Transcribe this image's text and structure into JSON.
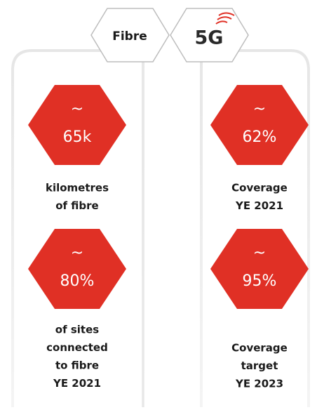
{
  "tabs": [
    "Fibre",
    "5G"
  ],
  "columns": [
    {
      "stats": [
        {
          "prefix": "~",
          "value": "65k",
          "label": [
            "kilometres",
            "of fibre"
          ]
        },
        {
          "prefix": "~",
          "value": "80%",
          "label": [
            "of sites",
            "connected",
            "to fibre",
            "YE 2021"
          ]
        }
      ]
    },
    {
      "stats": [
        {
          "prefix": "~",
          "value": "62%",
          "label": [
            "Coverage",
            "YE 2021"
          ]
        },
        {
          "prefix": "~",
          "value": "95%",
          "label": [
            "Coverage",
            "target",
            "YE 2023"
          ]
        }
      ]
    }
  ]
}
